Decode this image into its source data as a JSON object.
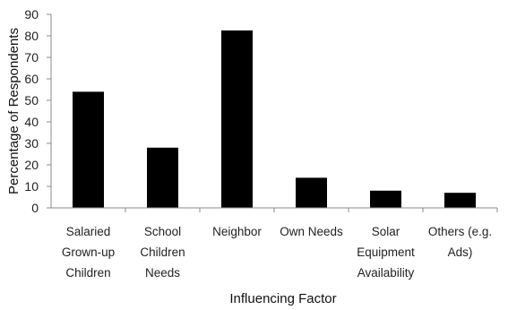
{
  "chart_data": {
    "type": "bar",
    "title": "",
    "xlabel": "Influencing Factor",
    "ylabel": "Percentage of Respondents",
    "ylim": [
      0,
      90
    ],
    "yticks": [
      0,
      10,
      20,
      30,
      40,
      50,
      60,
      70,
      80,
      90
    ],
    "grid": false,
    "bar_color": "#000000",
    "categories": [
      [
        "Salaried",
        "Grown-up",
        "Children"
      ],
      [
        "School",
        "Children",
        "Needs"
      ],
      [
        "Neighbor"
      ],
      [
        "Own Needs"
      ],
      [
        "Solar",
        "Equipment",
        "Availability"
      ],
      [
        "Others (e.g.",
        "Ads)"
      ]
    ],
    "values": [
      54,
      28,
      82.5,
      14,
      8,
      7
    ]
  }
}
